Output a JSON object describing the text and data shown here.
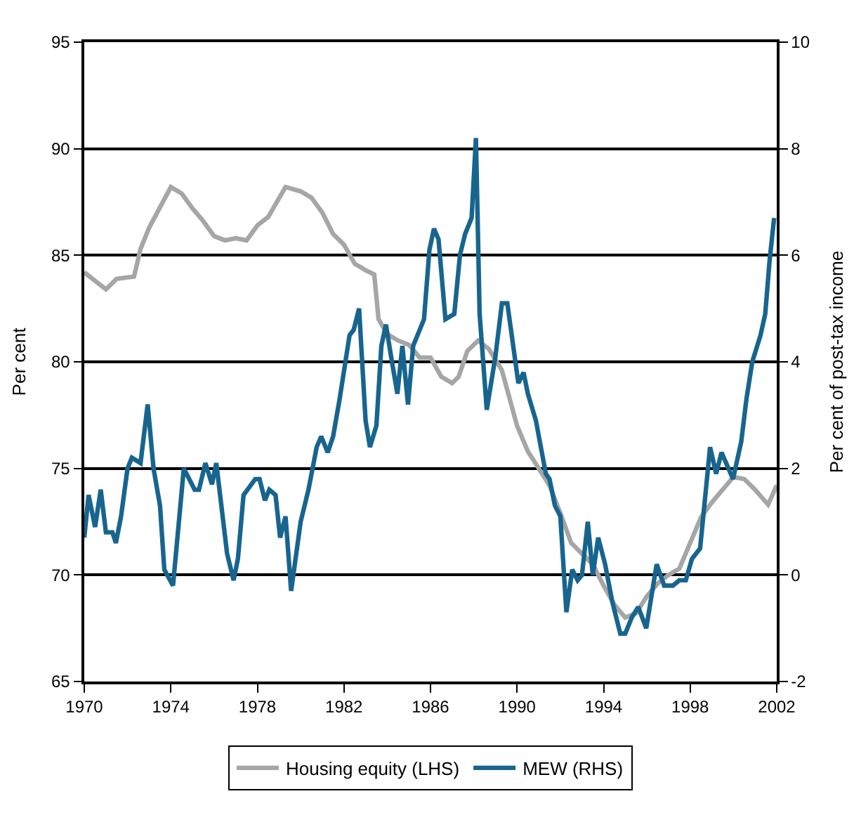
{
  "chart_data": {
    "type": "line",
    "ylabel": "Per cent",
    "y2label": "Per cent of post-tax income",
    "xlim": [
      1970,
      2002
    ],
    "xticks": [
      1970,
      1974,
      1978,
      1982,
      1986,
      1990,
      1994,
      1998,
      2002
    ],
    "ylim": [
      65,
      95
    ],
    "yticks": [
      65,
      70,
      75,
      80,
      85,
      90,
      95
    ],
    "y2lim": [
      -2,
      10
    ],
    "y2ticks": [
      -2,
      0,
      2,
      4,
      6,
      8,
      10
    ],
    "grid": "y",
    "legend": "bottom",
    "marker": "none",
    "line_style": "solid",
    "series": [
      {
        "name": "Housing equity (LHS)",
        "color": "#a6a6a6",
        "x": [
          1970,
          1970.5,
          1971,
          1971.5,
          1972.3,
          1972.6,
          1973,
          1974,
          1974.5,
          1975,
          1975.5,
          1976,
          1976.5,
          1977,
          1977.5,
          1978,
          1978.5,
          1979.3,
          1980,
          1980.5,
          1981,
          1981.5,
          1982,
          1982.5,
          1983,
          1983.4,
          1983.6,
          1984,
          1984.5,
          1985,
          1985.5,
          1986,
          1986.5,
          1987,
          1987.3,
          1987.7,
          1988.2,
          1988.7,
          1989.3,
          1990,
          1990.5,
          1991,
          1991.5,
          1992,
          1992.5,
          1993,
          1993.5,
          1994,
          1994.5,
          1995,
          1995.5,
          1996,
          1996.5,
          1997,
          1997.5,
          1998,
          1998.5,
          1999,
          1999.5,
          2000,
          2000.5,
          2001,
          2001.6,
          2002
        ],
        "values": [
          84.2,
          83.8,
          83.4,
          83.9,
          84.0,
          85.3,
          86.3,
          88.2,
          87.9,
          87.2,
          86.6,
          85.9,
          85.7,
          85.8,
          85.7,
          86.4,
          86.8,
          88.2,
          88.0,
          87.7,
          87.0,
          86.0,
          85.5,
          84.6,
          84.3,
          84.1,
          82.0,
          81.3,
          81.0,
          80.8,
          80.2,
          80.2,
          79.3,
          79.0,
          79.3,
          80.5,
          81.0,
          80.6,
          79.6,
          77.0,
          75.8,
          75.0,
          74.2,
          72.9,
          71.5,
          71.0,
          70.5,
          69.5,
          68.6,
          68.0,
          68.2,
          69.0,
          69.6,
          70.0,
          70.3,
          71.5,
          72.7,
          73.4,
          74.0,
          74.6,
          74.5,
          74.0,
          73.3,
          74.2
        ]
      },
      {
        "name": "MEW (RHS)",
        "color": "#17658f",
        "axis": "y2",
        "x": [
          1970,
          1970.2,
          1970.5,
          1970.76,
          1971,
          1971.3,
          1971.46,
          1971.7,
          1972,
          1972.2,
          1972.6,
          1972.93,
          1973.2,
          1973.5,
          1973.7,
          1974.1,
          1974.6,
          1975.1,
          1975.3,
          1975.6,
          1975.9,
          1976.1,
          1976.6,
          1976.9,
          1977.1,
          1977.36,
          1977.9,
          1978.1,
          1978.35,
          1978.55,
          1978.84,
          1979.05,
          1979.3,
          1979.56,
          1980,
          1980.36,
          1980.74,
          1980.95,
          1981.25,
          1981.5,
          1981.8,
          1982.26,
          1982.45,
          1982.7,
          1983,
          1983.2,
          1983.5,
          1983.73,
          1983.94,
          1984.26,
          1984.47,
          1984.7,
          1984.96,
          1985.2,
          1985.7,
          1985.95,
          1986.16,
          1986.37,
          1986.69,
          1987.1,
          1987.36,
          1987.6,
          1987.9,
          1988.1,
          1988.27,
          1988.6,
          1989,
          1989.3,
          1989.55,
          1990.06,
          1990.3,
          1990.5,
          1990.87,
          1991.33,
          1991.5,
          1991.75,
          1992,
          1992.28,
          1992.55,
          1992.8,
          1993,
          1993.27,
          1993.5,
          1993.75,
          1994.07,
          1994.4,
          1994.77,
          1995,
          1995.3,
          1995.6,
          1995.97,
          1996.45,
          1996.8,
          1997.2,
          1997.5,
          1997.8,
          1998.08,
          1998.46,
          1998.92,
          1999.2,
          1999.45,
          1999.98,
          2000.36,
          2000.6,
          2000.87,
          2001.25,
          2001.47,
          2001.67,
          2001.88
        ],
        "values": [
          0.7,
          1.5,
          0.9,
          1.6,
          0.8,
          0.8,
          0.6,
          1.1,
          2.0,
          2.2,
          2.1,
          3.2,
          2.0,
          1.3,
          0.1,
          -0.2,
          2.0,
          1.6,
          1.6,
          2.1,
          1.7,
          2.1,
          0.4,
          -0.1,
          0.3,
          1.5,
          1.8,
          1.8,
          1.4,
          1.6,
          1.5,
          0.7,
          1.1,
          -0.3,
          1.0,
          1.6,
          2.4,
          2.6,
          2.3,
          2.6,
          3.3,
          4.5,
          4.6,
          5.0,
          2.9,
          2.4,
          2.8,
          4.3,
          4.7,
          3.9,
          3.4,
          4.3,
          3.2,
          4.3,
          4.8,
          6.1,
          6.5,
          6.3,
          4.8,
          4.9,
          6.0,
          6.4,
          6.7,
          8.2,
          4.9,
          3.1,
          4.1,
          5.1,
          5.1,
          3.6,
          3.8,
          3.4,
          2.9,
          1.9,
          1.8,
          1.3,
          1.1,
          -0.7,
          0.1,
          -0.1,
          0.0,
          1.0,
          0.0,
          0.7,
          0.2,
          -0.5,
          -1.1,
          -1.1,
          -0.8,
          -0.6,
          -1.0,
          0.2,
          -0.2,
          -0.2,
          -0.1,
          -0.1,
          0.3,
          0.5,
          2.4,
          1.9,
          2.3,
          1.8,
          2.5,
          3.3,
          4.0,
          4.5,
          4.9,
          5.9,
          6.7
        ]
      }
    ]
  }
}
